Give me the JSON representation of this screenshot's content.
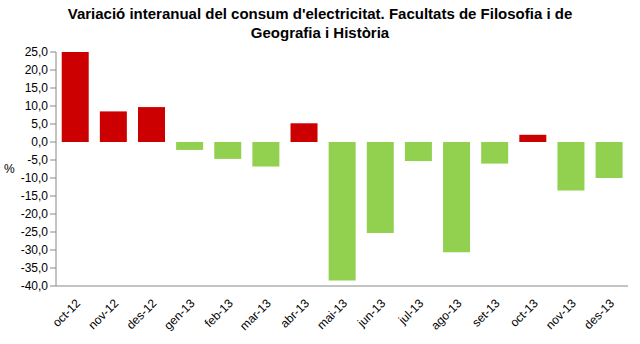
{
  "chart_data": {
    "type": "bar",
    "title": "Variació interanual del consum d'electricitat. Facultats de Filosofia i de Geografia i Història",
    "ylabel": "%",
    "categories": [
      "oct-12",
      "nov-12",
      "des-12",
      "gen-13",
      "feb-13",
      "mar-13",
      "abr-13",
      "mai-13",
      "jun-13",
      "jul-13",
      "ago-13",
      "set-13",
      "oct-13",
      "nov-13",
      "des-13"
    ],
    "values": [
      25.0,
      8.5,
      9.7,
      -2.2,
      -4.7,
      -6.8,
      5.2,
      -38.5,
      -25.3,
      -5.3,
      -30.6,
      -6.0,
      2.0,
      -13.5,
      -10.0
    ],
    "colors": [
      "#cc0000",
      "#cc0000",
      "#cc0000",
      "#92d050",
      "#92d050",
      "#92d050",
      "#cc0000",
      "#92d050",
      "#92d050",
      "#92d050",
      "#92d050",
      "#92d050",
      "#cc0000",
      "#92d050",
      "#92d050"
    ],
    "ylim": [
      -40,
      25
    ],
    "yticks": [
      {
        "value": -40,
        "label": "-40,0"
      },
      {
        "value": -35,
        "label": "-35,0"
      },
      {
        "value": -30,
        "label": "-30,0"
      },
      {
        "value": -25,
        "label": "-25,0"
      },
      {
        "value": -20,
        "label": "-20,0"
      },
      {
        "value": -15,
        "label": "-15,0"
      },
      {
        "value": -10,
        "label": "-10,0"
      },
      {
        "value": -5,
        "label": "-5,0"
      },
      {
        "value": 0,
        "label": "0,0"
      },
      {
        "value": 5,
        "label": "5,0"
      },
      {
        "value": 10,
        "label": "10,0"
      },
      {
        "value": 15,
        "label": "15,0"
      },
      {
        "value": 20,
        "label": "20,0"
      },
      {
        "value": 25,
        "label": "25,0"
      }
    ],
    "grid": false
  }
}
